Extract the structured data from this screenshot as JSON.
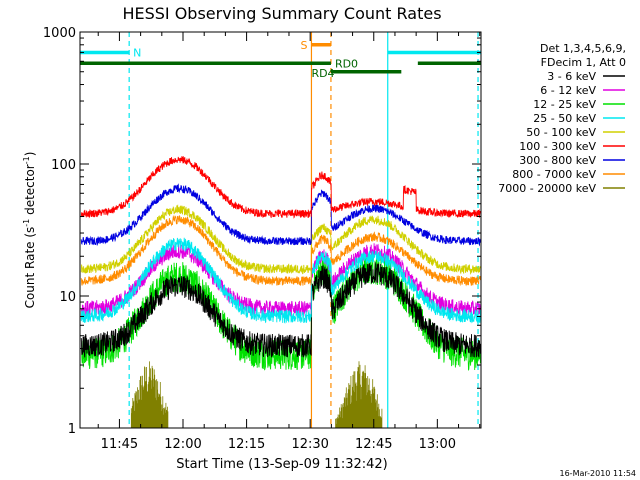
{
  "chart_data": {
    "type": "line",
    "title": "HESSI Observing Summary Count Rates",
    "xlabel": "Start Time (13-Sep-09 11:32:42)",
    "ylabel_main": "Count Rate (s",
    "ylabel_sup1": "-1",
    "ylabel_mid": " detector",
    "ylabel_sup2": "-1",
    "ylabel_end": ")",
    "y_scale": "log",
    "ylim": [
      1,
      1000
    ],
    "xlim_minutes": [
      695.7,
      790.3
    ],
    "x_ticks": [
      {
        "label": "11:45",
        "minutes": 705
      },
      {
        "label": "12:00",
        "minutes": 720
      },
      {
        "label": "12:15",
        "minutes": 735
      },
      {
        "label": "12:30",
        "minutes": 750
      },
      {
        "label": "12:45",
        "minutes": 765
      },
      {
        "label": "13:00",
        "minutes": 780
      }
    ],
    "y_ticks": [
      {
        "label": "1",
        "value": 1
      },
      {
        "label": "10",
        "value": 10
      },
      {
        "label": "100",
        "value": 100
      },
      {
        "label": "1000",
        "value": 1000
      }
    ],
    "legend": {
      "placement": "right",
      "header1": "Det 1,3,4,5,6,9,",
      "header2": "FDecim 1, Att 0"
    },
    "series": [
      {
        "name": "3 - 6 keV",
        "color": "#000000",
        "base": 4.2,
        "peak1": 12,
        "peak2": 15,
        "flare": 14,
        "noise": 0.09
      },
      {
        "name": "6 - 12 keV",
        "color": "#e000e0",
        "base": 8,
        "peak1": 22,
        "peak2": 22,
        "flare": 20,
        "noise": 0.06
      },
      {
        "name": "12 - 25 keV",
        "color": "#00e000",
        "base": 3.6,
        "peak1": 14,
        "peak2": 16,
        "flare": 16,
        "noise": 0.12
      },
      {
        "name": "25 - 50 keV",
        "color": "#00e8f0",
        "base": 7,
        "peak1": 25,
        "peak2": 20,
        "flare": 20,
        "noise": 0.05
      },
      {
        "name": "50 - 100 keV",
        "color": "#d0d000",
        "base": 16,
        "peak1": 45,
        "peak2": 38,
        "flare": 33,
        "noise": 0.035
      },
      {
        "name": "100 - 300 keV",
        "color": "#ff0000",
        "base": 42,
        "peak1": 108,
        "peak2": 52,
        "flare": 82,
        "noise": 0.03
      },
      {
        "name": "300 - 800 keV",
        "color": "#0000e0",
        "base": 26,
        "peak1": 65,
        "peak2": 46,
        "flare": 60,
        "noise": 0.03
      },
      {
        "name": "800 - 7000 keV",
        "color": "#ff8c00",
        "base": 13,
        "peak1": 38,
        "peak2": 28,
        "flare": 27,
        "noise": 0.035
      },
      {
        "name": "7000 - 20000 keV",
        "color": "#808000",
        "base": 1,
        "peak1": 2.6,
        "peak2": 2.8,
        "flare": 1,
        "noise": 0.08
      }
    ],
    "annotations": [
      {
        "label": "N",
        "color": "#00e8f0",
        "kind": "segment",
        "y": 700,
        "x0": 695.7,
        "x1": 707.3
      },
      {
        "label": "",
        "color": "#00e8f0",
        "kind": "segment",
        "y": 700,
        "x0": 768.3,
        "x1": 790.3
      },
      {
        "label": "S",
        "color": "#ff8c00",
        "kind": "segment",
        "y": 800,
        "x0": 750.3,
        "x1": 754.9
      },
      {
        "label": "",
        "color": "#006400",
        "kind": "segment",
        "y": 580,
        "x0": 695.7,
        "x1": 754.9
      },
      {
        "label": "RD4",
        "color": "#006400",
        "kind": "label",
        "y": 580,
        "x0": 750.3
      },
      {
        "label": "RD0",
        "color": "#006400",
        "kind": "segment",
        "y": 500,
        "x0": 754.9,
        "x1": 771.5
      },
      {
        "label": "",
        "color": "#006400",
        "kind": "segment",
        "y": 580,
        "x0": 775.4,
        "x1": 790.3
      }
    ],
    "vlines": [
      {
        "minutes": 707.3,
        "color": "#00e8f0",
        "dashed": true
      },
      {
        "minutes": 768.3,
        "color": "#00e8f0",
        "dashed": false
      },
      {
        "minutes": 789.6,
        "color": "#00e8f0",
        "dashed": true
      },
      {
        "minutes": 750.3,
        "color": "#ff8c00",
        "dashed": false
      },
      {
        "minutes": 754.9,
        "color": "#ff8c00",
        "dashed": true
      }
    ],
    "footer_timestamp": "16-Mar-2010 11:54"
  }
}
